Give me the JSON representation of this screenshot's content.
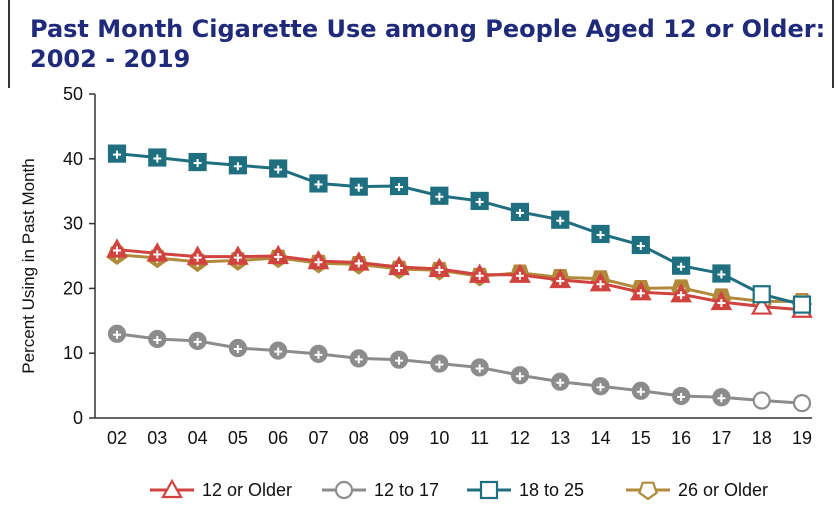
{
  "title": "Past Month Cigarette Use among People Aged 12 or Older:  2002 - 2019",
  "colors": {
    "12 or Older": "#d0433f",
    "12 to 17": "#8c8c8c",
    "18 to 25": "#1f6f80",
    "26 or Older": "#b08a3a"
  },
  "chart_data": {
    "type": "line",
    "title": "Past Month Cigarette Use among People Aged 12 or Older:  2002 - 2019",
    "xlabel": "",
    "ylabel": "Percent Using in Past Month",
    "ylim": [
      0,
      50
    ],
    "yticks": [
      0,
      10,
      20,
      30,
      40,
      50
    ],
    "categories": [
      "02",
      "03",
      "04",
      "05",
      "06",
      "07",
      "08",
      "09",
      "10",
      "11",
      "12",
      "13",
      "14",
      "15",
      "16",
      "17",
      "18",
      "19"
    ],
    "legend_position": "bottom",
    "series": [
      {
        "name": "12 or Older",
        "marker": "triangle",
        "color": "#d0433f",
        "values": [
          26.0,
          25.4,
          24.9,
          24.9,
          25.0,
          24.2,
          24.0,
          23.3,
          23.0,
          22.1,
          22.1,
          21.3,
          20.8,
          19.4,
          19.1,
          17.9,
          17.2,
          16.7
        ],
        "flags": [
          true,
          true,
          true,
          true,
          true,
          true,
          true,
          true,
          true,
          true,
          true,
          true,
          true,
          true,
          true,
          true,
          false,
          false
        ]
      },
      {
        "name": "12 to 17",
        "marker": "circle",
        "color": "#8c8c8c",
        "values": [
          13.0,
          12.2,
          11.9,
          10.8,
          10.4,
          9.9,
          9.2,
          9.0,
          8.4,
          7.8,
          6.6,
          5.6,
          4.9,
          4.2,
          3.4,
          3.2,
          2.7,
          2.3
        ],
        "flags": [
          true,
          true,
          true,
          true,
          true,
          true,
          true,
          true,
          true,
          true,
          true,
          true,
          true,
          true,
          true,
          true,
          false,
          false
        ]
      },
      {
        "name": "18 to 25",
        "marker": "square",
        "color": "#1f6f80",
        "values": [
          40.8,
          40.2,
          39.5,
          39.0,
          38.5,
          36.2,
          35.7,
          35.8,
          34.3,
          33.5,
          31.8,
          30.6,
          28.4,
          26.7,
          23.5,
          22.3,
          19.1,
          17.5
        ],
        "flags": [
          true,
          true,
          true,
          true,
          true,
          true,
          true,
          true,
          true,
          true,
          true,
          true,
          true,
          true,
          true,
          true,
          false,
          false
        ]
      },
      {
        "name": "26 or Older",
        "marker": "pentagon",
        "color": "#b08a3a",
        "values": [
          25.2,
          24.7,
          24.1,
          24.3,
          24.7,
          23.9,
          23.7,
          23.0,
          22.8,
          21.9,
          22.4,
          21.7,
          21.5,
          20.0,
          20.1,
          18.7,
          18.0,
          18.0
        ],
        "flags": [
          true,
          true,
          true,
          true,
          true,
          true,
          true,
          true,
          true,
          true,
          true,
          true,
          true,
          true,
          true,
          true,
          false,
          false
        ]
      }
    ]
  }
}
